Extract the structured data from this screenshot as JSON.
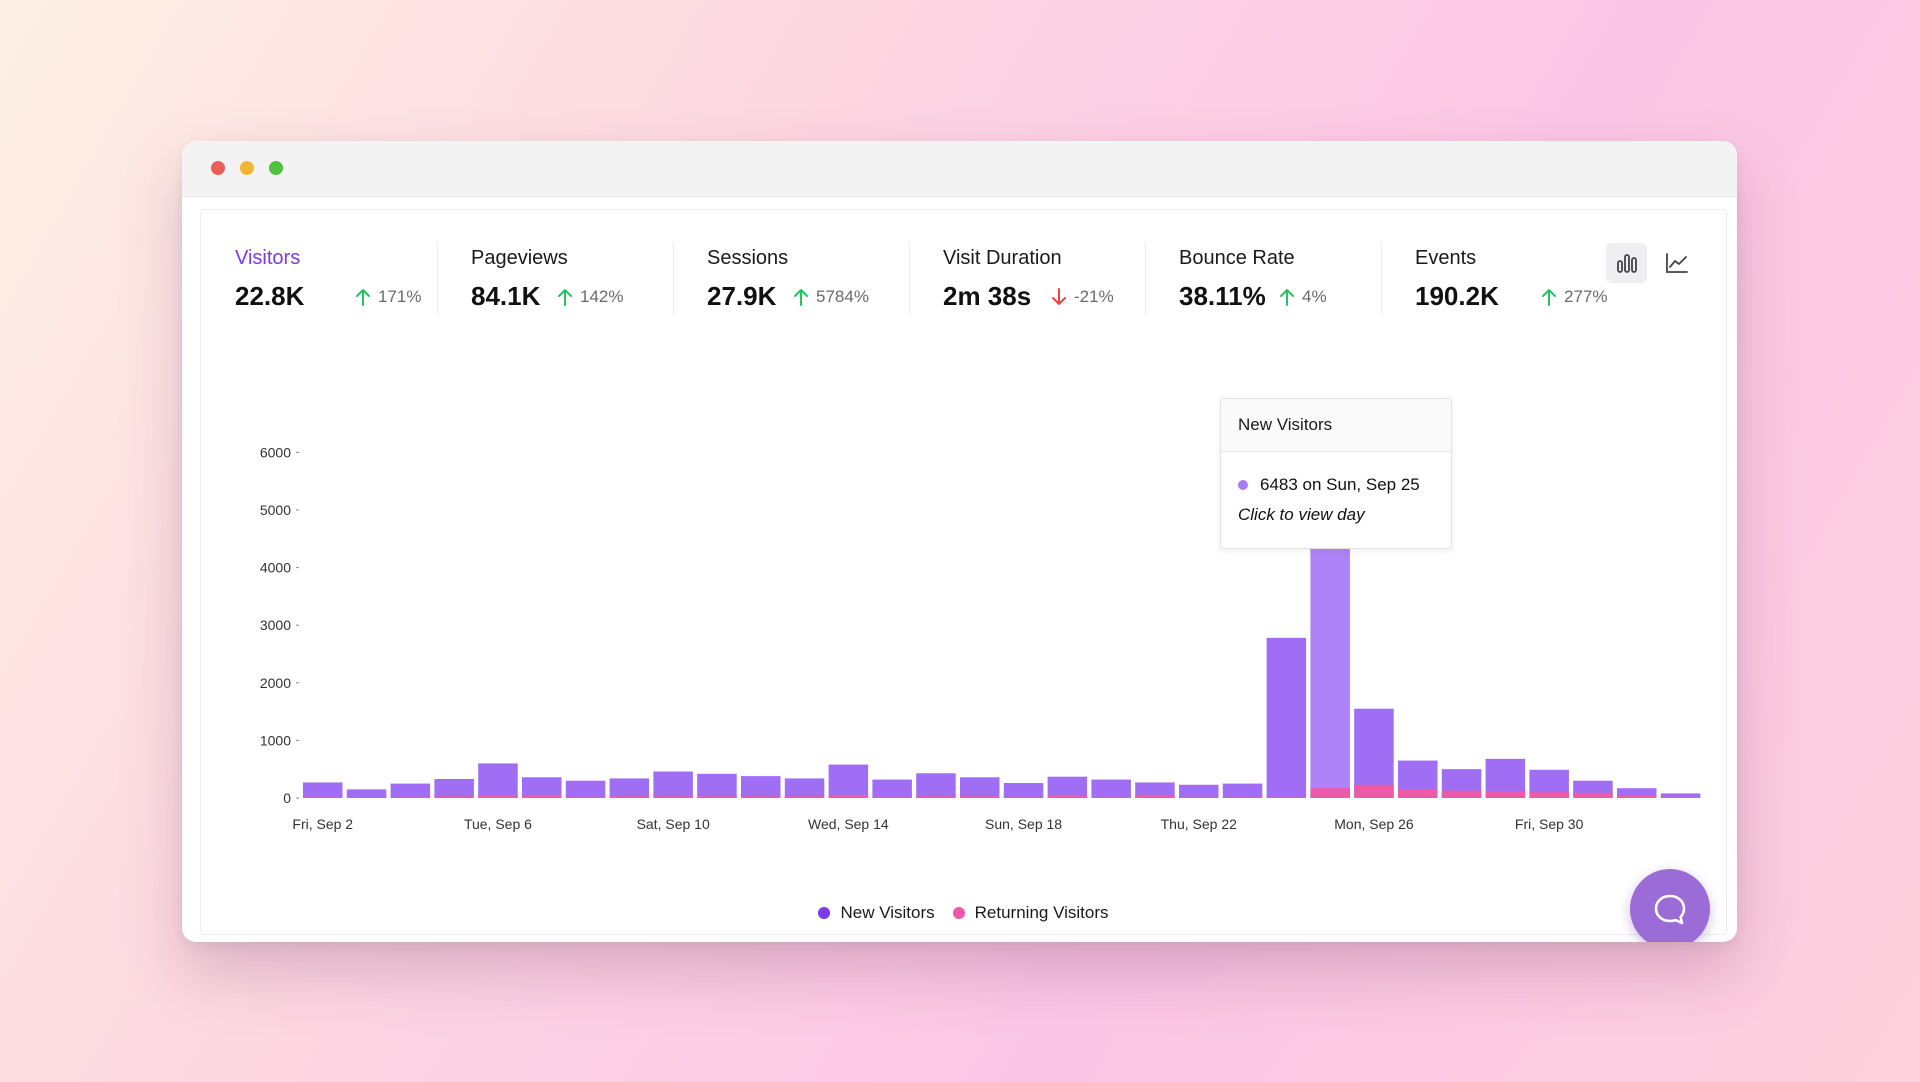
{
  "metrics": [
    {
      "label": "Visitors",
      "value": "22.8K",
      "change": "171%",
      "direction": "up",
      "active": true
    },
    {
      "label": "Pageviews",
      "value": "84.1K",
      "change": "142%",
      "direction": "up",
      "active": false
    },
    {
      "label": "Sessions",
      "value": "27.9K",
      "change": "5784%",
      "direction": "up",
      "active": false
    },
    {
      "label": "Visit Duration",
      "value": "2m 38s",
      "change": "-21%",
      "direction": "down",
      "active": false
    },
    {
      "label": "Bounce Rate",
      "value": "38.11%",
      "change": "4%",
      "direction": "up",
      "active": false
    },
    {
      "label": "Events",
      "value": "190.2K",
      "change": "277%",
      "direction": "up",
      "active": false
    }
  ],
  "view_toggle": {
    "selected": "bar",
    "icons": [
      "bar-chart-icon",
      "line-chart-icon"
    ]
  },
  "tooltip": {
    "title": "New Visitors",
    "value_text": "6483 on Sun, Sep 25",
    "action_text": "Click to view day"
  },
  "legend": {
    "new_label": "New Visitors",
    "returning_label": "Returning Visitors"
  },
  "colors": {
    "accent": "#7c3aed",
    "new_visitors": "#9f6ef5",
    "new_visitors_highlight": "#ad83f7",
    "returning_visitors": "#ee5aa8",
    "legend_new": "#7c3aed",
    "legend_returning": "#ee5aa8",
    "up": "#22c55e",
    "down": "#ef4444"
  },
  "chart_data": {
    "type": "bar",
    "stacked": true,
    "highlight_index": 23,
    "categories": [
      "Sep 2",
      "Sep 3",
      "Sep 4",
      "Sep 5",
      "Sep 6",
      "Sep 7",
      "Sep 8",
      "Sep 9",
      "Sep 10",
      "Sep 11",
      "Sep 12",
      "Sep 13",
      "Sep 14",
      "Sep 15",
      "Sep 16",
      "Sep 17",
      "Sep 18",
      "Sep 19",
      "Sep 20",
      "Sep 21",
      "Sep 22",
      "Sep 23",
      "Sep 24",
      "Sep 25",
      "Sep 26",
      "Sep 27",
      "Sep 28",
      "Sep 29",
      "Sep 30",
      "Oct 1",
      "Oct 2",
      "Oct 3"
    ],
    "series": [
      {
        "name": "New Visitors",
        "values": [
          270,
          150,
          250,
          330,
          600,
          360,
          300,
          340,
          460,
          420,
          380,
          340,
          580,
          320,
          430,
          360,
          260,
          370,
          320,
          270,
          230,
          250,
          2780,
          6483,
          1550,
          650,
          500,
          680,
          490,
          300,
          170,
          80
        ]
      },
      {
        "name": "Returning Visitors",
        "values": [
          20,
          10,
          20,
          30,
          50,
          40,
          20,
          30,
          30,
          30,
          30,
          30,
          40,
          20,
          30,
          30,
          20,
          40,
          20,
          40,
          20,
          20,
          20,
          170,
          230,
          150,
          130,
          120,
          100,
          90,
          50,
          20
        ]
      }
    ],
    "x_tick_labels": [
      "Fri, Sep 2",
      "Tue, Sep 6",
      "Sat, Sep 10",
      "Wed, Sep 14",
      "Sun, Sep 18",
      "Thu, Sep 22",
      "Mon, Sep 26",
      "Fri, Sep 30"
    ],
    "x_tick_indices": [
      0,
      4,
      8,
      12,
      16,
      20,
      24,
      28
    ],
    "y_ticks": [
      0,
      1000,
      2000,
      3000,
      4000,
      5000,
      6000
    ],
    "ylim": [
      0,
      6483
    ],
    "grid": false,
    "legend_position": "bottom"
  }
}
